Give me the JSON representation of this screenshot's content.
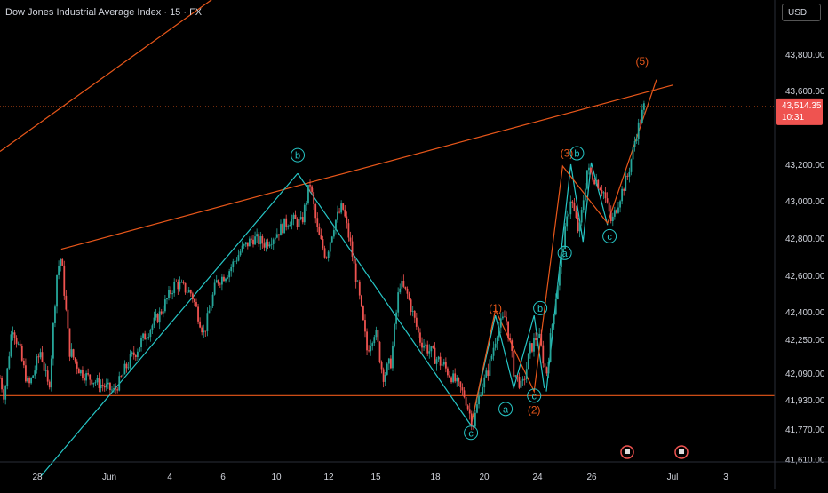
{
  "title": "Dow Jones Industrial Average Index · 15 · FX",
  "currency": "USD",
  "colors": {
    "background": "#000000",
    "up_candle": "#26a69a",
    "down_candle": "#ef5350",
    "trend_orange": "#e8571a",
    "wave_teal": "#26c6c6",
    "wave_red": "#e8571a",
    "price_label_bg": "#ef5350",
    "axis_text": "#d1d4dc"
  },
  "last_price": {
    "value": "43,514.35",
    "countdown": "10:31"
  },
  "chart_data": {
    "type": "candlestick",
    "title": "Dow Jones Industrial Average Index · 15 · FX",
    "x_ticks": [
      "28",
      "Jun",
      "4",
      "6",
      "10",
      "12",
      "15",
      "18",
      "20",
      "24",
      "26",
      "Jul",
      "3"
    ],
    "y_ticks": [
      "43,800.00",
      "43,600.00",
      "43,200.00",
      "43,000.00",
      "42,800.00",
      "42,600.00",
      "42,400.00",
      "42,250.00",
      "42,090.00",
      "41,930.00",
      "41,770.00",
      "41,610.00"
    ],
    "ylim": [
      41610,
      43950
    ],
    "price_path": [
      [
        0,
        42060
      ],
      [
        2,
        41950
      ],
      [
        6,
        42330
      ],
      [
        10,
        42180
      ],
      [
        14,
        42010
      ],
      [
        20,
        42200
      ],
      [
        24,
        41990
      ],
      [
        28,
        42620
      ],
      [
        30,
        42700
      ],
      [
        34,
        42200
      ],
      [
        40,
        42090
      ],
      [
        48,
        42030
      ],
      [
        56,
        41980
      ],
      [
        62,
        42120
      ],
      [
        70,
        42250
      ],
      [
        78,
        42380
      ],
      [
        86,
        42560
      ],
      [
        94,
        42500
      ],
      [
        100,
        42280
      ],
      [
        106,
        42560
      ],
      [
        112,
        42620
      ],
      [
        118,
        42730
      ],
      [
        124,
        42800
      ],
      [
        130,
        42770
      ],
      [
        136,
        42830
      ],
      [
        142,
        42900
      ],
      [
        148,
        42880
      ],
      [
        152,
        43100
      ],
      [
        156,
        42820
      ],
      [
        160,
        42700
      ],
      [
        164,
        42880
      ],
      [
        168,
        42970
      ],
      [
        172,
        42760
      ],
      [
        176,
        42500
      ],
      [
        180,
        42200
      ],
      [
        184,
        42300
      ],
      [
        188,
        42070
      ],
      [
        192,
        42150
      ],
      [
        196,
        42560
      ],
      [
        200,
        42490
      ],
      [
        206,
        42250
      ],
      [
        212,
        42180
      ],
      [
        218,
        42120
      ],
      [
        224,
        42030
      ],
      [
        228,
        41950
      ],
      [
        232,
        41790
      ],
      [
        236,
        42000
      ],
      [
        240,
        42120
      ],
      [
        244,
        42300
      ],
      [
        248,
        42380
      ],
      [
        252,
        42100
      ],
      [
        256,
        42000
      ],
      [
        260,
        42200
      ],
      [
        264,
        42280
      ],
      [
        268,
        42080
      ],
      [
        272,
        42430
      ],
      [
        276,
        42750
      ],
      [
        280,
        43020
      ],
      [
        284,
        42820
      ],
      [
        288,
        43170
      ],
      [
        292,
        43120
      ],
      [
        296,
        43050
      ],
      [
        300,
        42880
      ],
      [
        304,
        43020
      ],
      [
        308,
        43140
      ],
      [
        312,
        43360
      ],
      [
        316,
        43514
      ]
    ],
    "wave_labels": [
      {
        "text": "b",
        "x": 146,
        "y": 43250,
        "style": "teal-circle"
      },
      {
        "text": "c",
        "x": 231,
        "y": 41750,
        "style": "teal-circle"
      },
      {
        "text": "(1)",
        "x": 243,
        "y": 42420,
        "style": "red"
      },
      {
        "text": "a",
        "x": 248,
        "y": 41880,
        "style": "teal-circle"
      },
      {
        "text": "b",
        "x": 265,
        "y": 42420,
        "style": "teal-circle"
      },
      {
        "text": "c",
        "x": 262,
        "y": 41955,
        "style": "teal-circle"
      },
      {
        "text": "(2)",
        "x": 262,
        "y": 41875,
        "style": "red"
      },
      {
        "text": "(3)",
        "x": 278,
        "y": 43260,
        "style": "red"
      },
      {
        "text": "b",
        "x": 283,
        "y": 43260,
        "style": "teal-circle"
      },
      {
        "text": "a",
        "x": 277,
        "y": 42720,
        "style": "teal-circle"
      },
      {
        "text": "c",
        "x": 299,
        "y": 42810,
        "style": "teal-circle"
      },
      {
        "text": "(5)",
        "x": 315,
        "y": 43760,
        "style": "red"
      }
    ],
    "lines": [
      {
        "name": "upper-channel",
        "from": [
          0,
          43270
        ],
        "to": [
          160,
          44550
        ],
        "color": "trend_orange"
      },
      {
        "name": "resistance-trend",
        "from": [
          30,
          42740
        ],
        "to": [
          330,
          43630
        ],
        "color": "trend_orange"
      },
      {
        "name": "support-horizontal",
        "from": [
          0,
          41955
        ],
        "to": [
          380,
          41955
        ],
        "color": "trend_orange"
      },
      {
        "name": "last-price-line",
        "from": [
          0,
          43514
        ],
        "to": [
          380,
          43514
        ],
        "color": "trend_orange"
      },
      {
        "name": "wave-up",
        "from": [
          20,
          41520
        ],
        "to": [
          146,
          43150
        ],
        "color": "wave_teal"
      },
      {
        "name": "wave-down",
        "from": [
          146,
          43150
        ],
        "to": [
          231,
          41790
        ],
        "color": "wave_teal"
      },
      {
        "name": "wave-1",
        "points": [
          [
            231,
            41790
          ],
          [
            243,
            42380
          ],
          [
            252,
            42000
          ],
          [
            262,
            42380
          ],
          [
            267,
            42000
          ]
        ],
        "color": "wave_teal"
      },
      {
        "name": "wave-3",
        "points": [
          [
            268,
            41980
          ],
          [
            276,
            42800
          ],
          [
            280,
            43200
          ],
          [
            286,
            42780
          ],
          [
            290,
            43210
          ],
          [
            298,
            42870
          ]
        ],
        "color": "wave_teal"
      },
      {
        "name": "wave-red-1",
        "points": [
          [
            231,
            41790
          ],
          [
            243,
            42410
          ],
          [
            262,
            41980
          ],
          [
            276,
            43190
          ],
          [
            298,
            42880
          ],
          [
            322,
            43660
          ]
        ],
        "color": "wave_red"
      }
    ]
  }
}
